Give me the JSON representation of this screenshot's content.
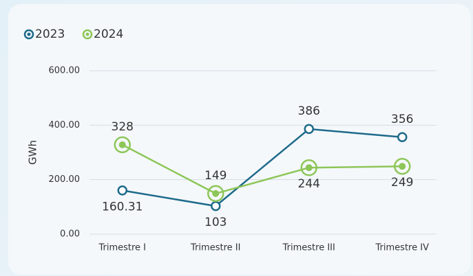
{
  "chart_data": {
    "type": "line",
    "y_label": "GWh",
    "categories": [
      "Trimestre I",
      "Trimestre II",
      "Trimestre III",
      "Trimestre IV"
    ],
    "series": [
      {
        "name": "2023",
        "color": "#1d6a8a",
        "values": [
          160.31,
          103,
          386,
          356
        ]
      },
      {
        "name": "2024",
        "color": "#8dc657",
        "values": [
          328,
          149,
          244,
          249
        ]
      }
    ],
    "ylim": [
      0,
      600
    ],
    "yticks": [
      {
        "value": 0,
        "label": "0.00"
      },
      {
        "value": 200,
        "label": "200.00"
      },
      {
        "value": 400,
        "label": "400.00"
      },
      {
        "value": 600,
        "label": "600.00"
      }
    ],
    "grid": true,
    "legend": "top-left"
  }
}
